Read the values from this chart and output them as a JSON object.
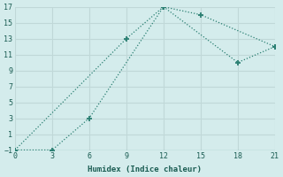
{
  "line1_x": [
    0,
    9,
    12,
    15,
    21
  ],
  "line1_y": [
    -1,
    13,
    17,
    16,
    12
  ],
  "line2_x": [
    0,
    3,
    6,
    12,
    18,
    21
  ],
  "line2_y": [
    -1,
    -1,
    3,
    17,
    10,
    12
  ],
  "color": "#2a7f72",
  "bg_color": "#d4ecec",
  "grid_color": "#c0d8d8",
  "xlabel": "Humidex (Indice chaleur)",
  "xlim": [
    0,
    21
  ],
  "ylim": [
    -1,
    17
  ],
  "xticks": [
    0,
    3,
    6,
    9,
    12,
    15,
    18,
    21
  ],
  "yticks": [
    -1,
    1,
    3,
    5,
    7,
    9,
    11,
    13,
    15,
    17
  ]
}
